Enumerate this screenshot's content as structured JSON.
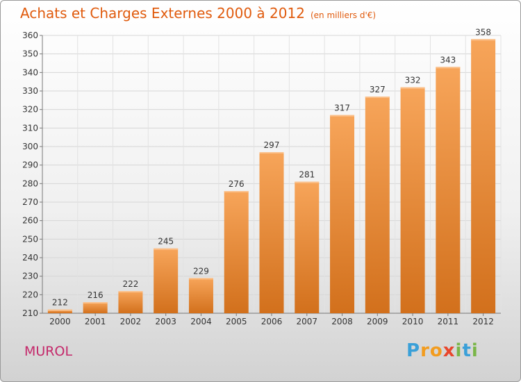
{
  "title": "Achats et Charges Externes 2000 à 2012",
  "unit": "(en milliers d'€)",
  "town": "MUROL",
  "logo_letters": [
    "P",
    "r",
    "o",
    "x",
    "i",
    "t",
    "i"
  ],
  "colors": {
    "title": "#e05a0c",
    "town": "#c4286a",
    "bar_top": "#f7a55a",
    "bar_bottom": "#d2701c"
  },
  "chart_data": {
    "type": "bar",
    "title": "Achats et Charges Externes 2000 à 2012",
    "subtitle": "(en milliers d'€)",
    "categories": [
      "2000",
      "2001",
      "2002",
      "2003",
      "2004",
      "2005",
      "2006",
      "2007",
      "2008",
      "2009",
      "2010",
      "2011",
      "2012"
    ],
    "values": [
      212,
      216,
      222,
      245,
      229,
      276,
      297,
      281,
      317,
      327,
      332,
      343,
      358
    ],
    "ylim": [
      210,
      360
    ],
    "yticks": [
      210,
      220,
      230,
      240,
      250,
      260,
      270,
      280,
      290,
      300,
      310,
      320,
      330,
      340,
      350,
      360
    ],
    "grid": true,
    "xlabel": "",
    "ylabel": ""
  }
}
